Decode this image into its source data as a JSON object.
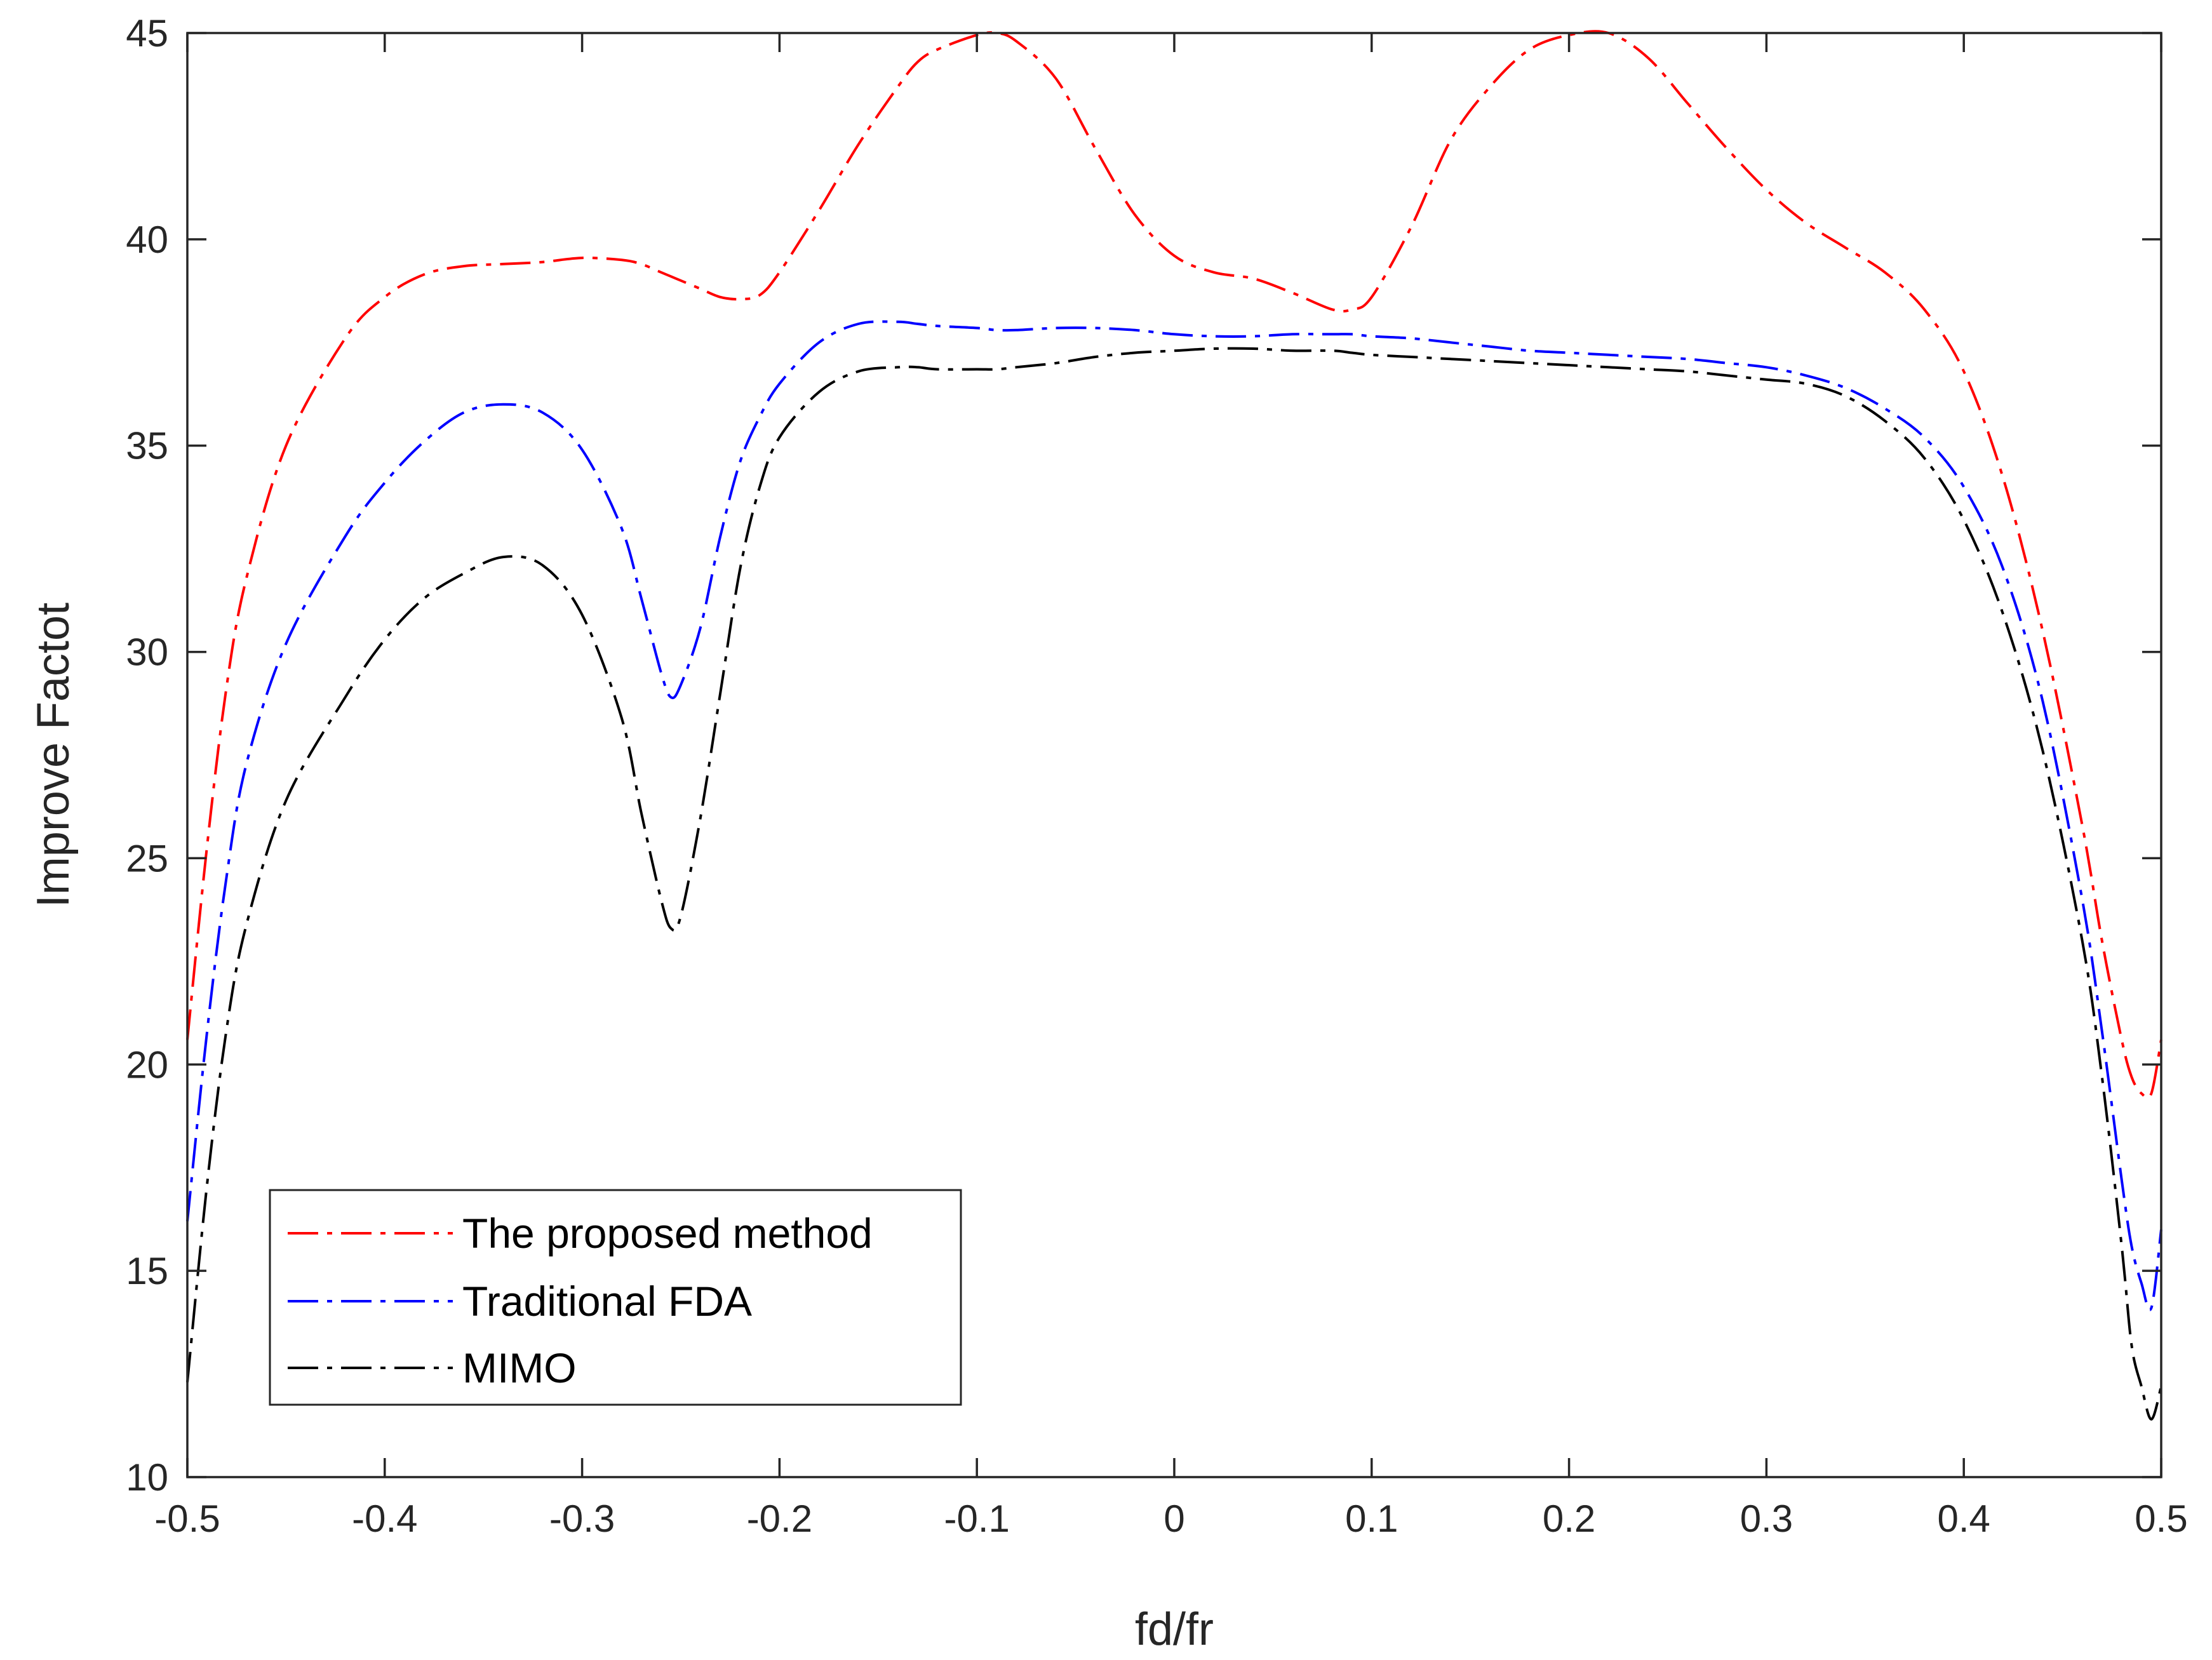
{
  "chart_data": {
    "type": "line",
    "title": "",
    "xlabel": "fd/fr",
    "ylabel": "Improve Factot",
    "xlim": [
      -0.5,
      0.5
    ],
    "ylim": [
      10,
      45
    ],
    "xticks": [
      -0.5,
      -0.4,
      -0.3,
      -0.2,
      -0.1,
      0,
      0.1,
      0.2,
      0.3,
      0.4,
      0.5
    ],
    "xtick_labels": [
      "-0.5",
      "-0.4",
      "-0.3",
      "-0.2",
      "-0.1",
      "0",
      "0.1",
      "0.2",
      "0.3",
      "0.4",
      "0.5"
    ],
    "yticks": [
      10,
      15,
      20,
      25,
      30,
      35,
      40,
      45
    ],
    "ytick_labels": [
      "10",
      "15",
      "20",
      "25",
      "30",
      "35",
      "40",
      "45"
    ],
    "grid": false,
    "legend_position": "bottom-left",
    "x": [
      -0.5,
      -0.49,
      -0.48,
      -0.47,
      -0.45,
      -0.42,
      -0.4,
      -0.38,
      -0.36,
      -0.34,
      -0.32,
      -0.3,
      -0.28,
      -0.27,
      -0.26,
      -0.255,
      -0.25,
      -0.24,
      -0.23,
      -0.22,
      -0.21,
      -0.2,
      -0.18,
      -0.16,
      -0.14,
      -0.13,
      -0.12,
      -0.1,
      -0.09,
      -0.08,
      -0.06,
      -0.04,
      -0.02,
      0,
      0.02,
      0.04,
      0.06,
      0.08,
      0.09,
      0.1,
      0.12,
      0.14,
      0.16,
      0.18,
      0.2,
      0.22,
      0.24,
      0.26,
      0.28,
      0.3,
      0.32,
      0.34,
      0.36,
      0.38,
      0.4,
      0.42,
      0.44,
      0.46,
      0.47,
      0.48,
      0.485,
      0.49,
      0.495,
      0.5
    ],
    "series": [
      {
        "name": "The proposed method",
        "color": "#ff0000",
        "values": [
          20.6,
          25.3,
          29.2,
          31.8,
          35.0,
          37.6,
          38.6,
          39.15,
          39.35,
          39.4,
          39.45,
          39.55,
          39.5,
          39.4,
          39.2,
          39.1,
          39.0,
          38.8,
          38.6,
          38.55,
          38.65,
          39.2,
          40.7,
          42.3,
          43.7,
          44.3,
          44.6,
          44.95,
          45.0,
          44.8,
          43.9,
          42.2,
          40.6,
          39.6,
          39.2,
          39.05,
          38.7,
          38.3,
          38.3,
          38.6,
          40.3,
          42.4,
          43.7,
          44.6,
          44.95,
          45.0,
          44.4,
          43.3,
          42.2,
          41.2,
          40.4,
          39.8,
          39.2,
          38.3,
          36.8,
          34.2,
          30.5,
          25.8,
          23.0,
          20.6,
          19.7,
          19.3,
          19.3,
          20.6
        ]
      },
      {
        "name": "Traditional FDA",
        "color": "#0000ff",
        "values": [
          16.2,
          20.8,
          24.6,
          27.3,
          30.2,
          32.8,
          34.1,
          35.1,
          35.8,
          36.0,
          35.8,
          34.9,
          33.0,
          31.3,
          29.5,
          28.9,
          29.2,
          30.6,
          32.8,
          34.6,
          35.7,
          36.5,
          37.5,
          37.95,
          38.0,
          37.95,
          37.9,
          37.85,
          37.8,
          37.8,
          37.85,
          37.85,
          37.8,
          37.7,
          37.65,
          37.65,
          37.7,
          37.7,
          37.7,
          37.65,
          37.6,
          37.5,
          37.4,
          37.3,
          37.25,
          37.2,
          37.15,
          37.1,
          37.0,
          36.9,
          36.7,
          36.4,
          35.9,
          35.2,
          34.0,
          32.0,
          28.8,
          24.0,
          20.8,
          17.2,
          15.6,
          14.7,
          14.1,
          16.0
        ]
      },
      {
        "name": "MIMO",
        "color": "#000000",
        "values": [
          12.3,
          17.1,
          20.9,
          23.4,
          26.4,
          28.9,
          30.3,
          31.3,
          31.9,
          32.3,
          32.1,
          30.9,
          28.4,
          26.1,
          24.0,
          23.3,
          23.6,
          26.0,
          29.0,
          32.0,
          34.0,
          35.2,
          36.3,
          36.8,
          36.9,
          36.9,
          36.85,
          36.85,
          36.85,
          36.9,
          37.0,
          37.15,
          37.25,
          37.3,
          37.35,
          37.35,
          37.3,
          37.3,
          37.25,
          37.2,
          37.15,
          37.1,
          37.05,
          37.0,
          36.95,
          36.9,
          36.85,
          36.8,
          36.7,
          36.6,
          36.5,
          36.2,
          35.6,
          34.7,
          33.2,
          30.9,
          27.6,
          23.0,
          19.7,
          15.6,
          13.2,
          12.2,
          11.4,
          12.2
        ]
      }
    ]
  }
}
